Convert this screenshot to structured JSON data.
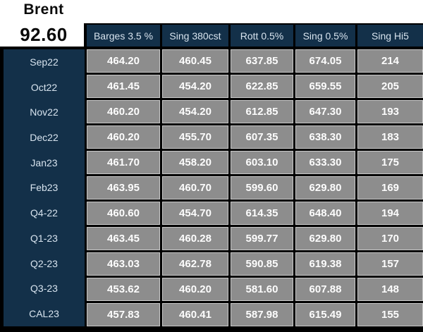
{
  "instrument": {
    "name": "Brent",
    "price": "92.60"
  },
  "table": {
    "columns": [
      "Barges 3.5 %",
      "Sing 380cst",
      "Rott 0.5%",
      "Sing 0.5%",
      "Sing Hi5"
    ],
    "rows": [
      {
        "label": "Sep22",
        "values": [
          "464.20",
          "460.45",
          "637.85",
          "674.05",
          "214"
        ]
      },
      {
        "label": "Oct22",
        "values": [
          "461.45",
          "454.20",
          "622.85",
          "659.55",
          "205"
        ]
      },
      {
        "label": "Nov22",
        "values": [
          "460.20",
          "454.20",
          "612.85",
          "647.30",
          "193"
        ]
      },
      {
        "label": "Dec22",
        "values": [
          "460.20",
          "455.70",
          "607.35",
          "638.30",
          "183"
        ]
      },
      {
        "label": "Jan23",
        "values": [
          "461.70",
          "458.20",
          "603.10",
          "633.30",
          "175"
        ]
      },
      {
        "label": "Feb23",
        "values": [
          "463.95",
          "460.70",
          "599.60",
          "629.80",
          "169"
        ]
      },
      {
        "label": "Q4-22",
        "values": [
          "460.60",
          "454.70",
          "614.35",
          "648.40",
          "194"
        ]
      },
      {
        "label": "Q1-23",
        "values": [
          "463.45",
          "460.28",
          "599.77",
          "629.80",
          "170"
        ]
      },
      {
        "label": "Q2-23",
        "values": [
          "463.03",
          "462.78",
          "590.85",
          "619.38",
          "157"
        ]
      },
      {
        "label": "Q3-23",
        "values": [
          "453.62",
          "460.20",
          "581.60",
          "607.88",
          "148"
        ]
      },
      {
        "label": "CAL23",
        "values": [
          "457.83",
          "460.41",
          "587.98",
          "615.49",
          "155"
        ]
      }
    ]
  },
  "colors": {
    "navy": "#133049",
    "cell_gray": "#8d8d8d",
    "cell_border": "#c8c8c8",
    "table_background": "#000000",
    "header_text": "#d7e3ee",
    "value_text": "#fdfdfd"
  }
}
